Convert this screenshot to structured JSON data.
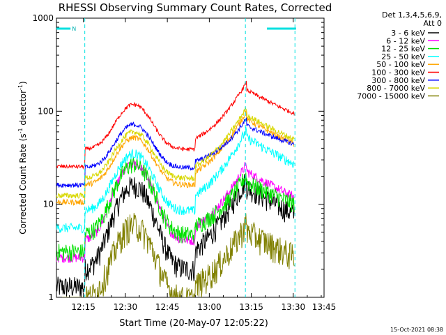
{
  "chart_data": {
    "type": "line",
    "title": "RHESSI Observing Summary Count Rates, Corrected",
    "xlabel": "Start Time (20-May-07 12:05:22)",
    "ylabel_main": "Corrected Count Rate (s",
    "ylabel_sup1": "-1",
    "ylabel_mid": " detector",
    "ylabel_sup2": "-1",
    "ylabel_end": ")",
    "y_scale": "log",
    "ylim": [
      1,
      1000
    ],
    "xlim_min": [
      5.37,
      101.0
    ],
    "x_ticks": [
      {
        "t": 15,
        "label": "12:15"
      },
      {
        "t": 30,
        "label": "12:30"
      },
      {
        "t": 45,
        "label": "12:45"
      },
      {
        "t": 60,
        "label": "13:00"
      },
      {
        "t": 75,
        "label": "13:15"
      },
      {
        "t": 90,
        "label": "13:30"
      },
      {
        "t": 105,
        "label": "13:45"
      }
    ],
    "y_ticks": [
      {
        "v": 1,
        "label": "1"
      },
      {
        "v": 10,
        "label": "10"
      },
      {
        "v": 100,
        "label": "100"
      },
      {
        "v": 1000,
        "label": "1000"
      }
    ],
    "legend_header": [
      "Det 1,3,4,5,6,9,",
      "Att 0"
    ],
    "legend_position": "right",
    "footer_timestamp": "15-Oct-2021 08:38",
    "night_marker": "N",
    "saa_night_bars": [
      {
        "t_start": 5.37,
        "t_end": 10.4
      },
      {
        "t_start": 80.6,
        "t_end": 91.0
      }
    ],
    "data_gaps": [
      {
        "t": 15.5
      },
      {
        "t": 72.9
      },
      {
        "t": 90.6
      }
    ],
    "series": [
      {
        "name": "3 - 6 keV",
        "color": "#000000",
        "base": 2.1,
        "peak": 16,
        "flare": 18,
        "noise": 0.28
      },
      {
        "name": "6 - 12 keV",
        "color": "#ff00ff",
        "base": 4.3,
        "peak": 27,
        "flare": 26,
        "noise": 0.12
      },
      {
        "name": "12 - 25 keV",
        "color": "#00e000",
        "base": 5.0,
        "peak": 27,
        "flare": 20,
        "noise": 0.22
      },
      {
        "name": "25 - 50 keV",
        "color": "#00ffff",
        "base": 9.0,
        "peak": 35,
        "flare": 60,
        "noise": 0.12
      },
      {
        "name": "50 - 100 keV",
        "color": "#ffa500",
        "base": 17,
        "peak": 52,
        "flare": 95,
        "noise": 0.07
      },
      {
        "name": "100 - 300 keV",
        "color": "#ff0000",
        "base": 41,
        "peak": 118,
        "flare": 195,
        "noise": 0.05
      },
      {
        "name": "300 - 800 keV",
        "color": "#0000ff",
        "base": 26,
        "peak": 72,
        "flare": 80,
        "noise": 0.06
      },
      {
        "name": "800 - 7000 keV",
        "color": "#d8d800",
        "base": 20,
        "peak": 60,
        "flare": 105,
        "noise": 0.07
      },
      {
        "name": "7000 - 15000 keV",
        "color": "#808000",
        "base": 1.0,
        "peak": 6,
        "flare": 6,
        "noise": 0.35
      }
    ]
  }
}
